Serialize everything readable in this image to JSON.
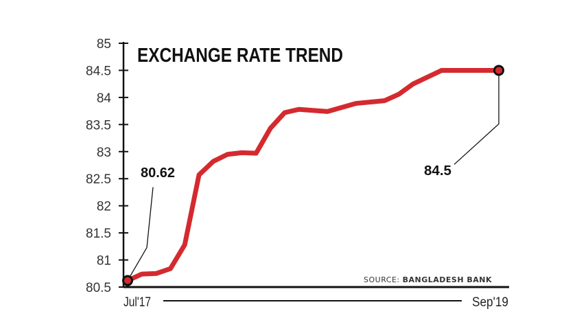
{
  "chart_data": {
    "type": "line",
    "title": "EXCHANGE RATE TREND",
    "xlabel": "",
    "ylabel": "",
    "x_tick_labels": [
      "Jul'17",
      "Sep'19"
    ],
    "x": [
      "2017-07",
      "2017-08",
      "2017-09",
      "2017-10",
      "2017-11",
      "2017-12",
      "2018-01",
      "2018-02",
      "2018-03",
      "2018-04",
      "2018-05",
      "2018-06",
      "2018-07",
      "2018-09",
      "2018-11",
      "2019-01",
      "2019-02",
      "2019-03",
      "2019-05",
      "2019-09"
    ],
    "values": [
      80.62,
      80.74,
      80.75,
      80.84,
      81.28,
      82.57,
      82.82,
      82.95,
      82.98,
      82.97,
      83.43,
      83.72,
      83.78,
      83.74,
      83.89,
      83.94,
      84.06,
      84.25,
      84.5,
      84.5
    ],
    "ylim": [
      80.5,
      85
    ],
    "y_ticks": [
      "80.5",
      "81",
      "81.5",
      "82",
      "82.5",
      "83",
      "83.5",
      "84",
      "84.5",
      "85"
    ],
    "grid": false,
    "annotations": [
      {
        "label": "80.62",
        "at": "start"
      },
      {
        "label": "84.5",
        "at": "end"
      }
    ],
    "source": {
      "prefix": "SOURCE:",
      "name": "BANGLADESH BANK"
    },
    "colors": {
      "line": "#d42a2f",
      "axis": "#111111",
      "marker_fill": "#d42a2f",
      "marker_stroke": "#111111"
    }
  }
}
